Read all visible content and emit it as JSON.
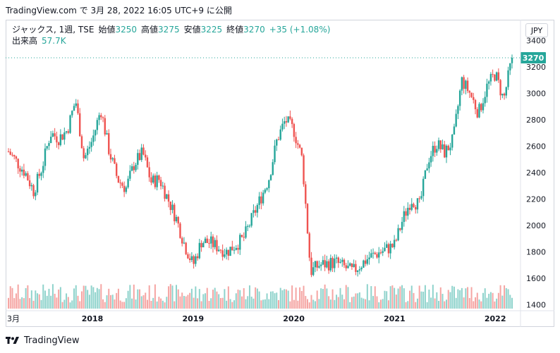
{
  "header": {
    "caption": "TradingView.com で 3月 28, 2022 16:05 UTC+9 に公開"
  },
  "legend": {
    "symbol": "ジャックス, 1週, TSE",
    "open_label": "始値",
    "open_value": "3250",
    "high_label": "高値",
    "high_value": "3275",
    "low_label": "安値",
    "low_value": "3225",
    "close_label": "終値",
    "close_value": "3270",
    "change": "+35 (+1.08%)",
    "volume_label": "出来高",
    "volume_value": "57.7K"
  },
  "currency_button": "JPY",
  "price_badge": "3270",
  "colors": {
    "up": "#26a69a",
    "down": "#ef5350",
    "up_vol": "#8fd3cc",
    "down_vol": "#f5a5a3"
  },
  "footer": {
    "brand": "TradingView",
    "logo_icon": "tradingview-logo-icon"
  },
  "chart_data": {
    "type": "candlestick",
    "interval": "1W",
    "y_ticks": [
      3400,
      3200,
      3000,
      2800,
      2600,
      2400,
      2200,
      2000,
      1800,
      1600,
      1400
    ],
    "y_range": [
      1370,
      3430
    ],
    "x_ticks": [
      "3月",
      "2018",
      "2019",
      "2020",
      "2021",
      "2022"
    ],
    "grid": false,
    "last_price": 3270,
    "anchors": [
      [
        "2017-03",
        2560
      ],
      [
        "2017-05",
        2400
      ],
      [
        "2017-06",
        2260
      ],
      [
        "2017-07",
        2440
      ],
      [
        "2017-08",
        2700
      ],
      [
        "2017-09",
        2660
      ],
      [
        "2017-10",
        2720
      ],
      [
        "2017-11",
        2950
      ],
      [
        "2017-12",
        2500
      ],
      [
        "2018-01",
        2650
      ],
      [
        "2018-02",
        2880
      ],
      [
        "2018-03",
        2560
      ],
      [
        "2018-04",
        2350
      ],
      [
        "2018-05",
        2280
      ],
      [
        "2018-06",
        2470
      ],
      [
        "2018-07",
        2550
      ],
      [
        "2018-08",
        2330
      ],
      [
        "2018-09",
        2350
      ],
      [
        "2018-10",
        2200
      ],
      [
        "2018-11",
        2050
      ],
      [
        "2018-12",
        1850
      ],
      [
        "2019-01",
        1700
      ],
      [
        "2019-02",
        1880
      ],
      [
        "2019-03",
        1870
      ],
      [
        "2019-05",
        1800
      ],
      [
        "2019-07",
        1900
      ],
      [
        "2019-08",
        2050
      ],
      [
        "2019-09",
        2200
      ],
      [
        "2019-10",
        2350
      ],
      [
        "2019-11",
        2650
      ],
      [
        "2019-12",
        2800
      ],
      [
        "2020-01",
        2720
      ],
      [
        "2020-02",
        2500
      ],
      [
        "2020-03",
        1650
      ],
      [
        "2020-04",
        1700
      ],
      [
        "2020-06",
        1720
      ],
      [
        "2020-08",
        1650
      ],
      [
        "2020-10",
        1760
      ],
      [
        "2020-12",
        1820
      ],
      [
        "2021-01",
        1850
      ],
      [
        "2021-02",
        2050
      ],
      [
        "2021-03",
        2200
      ],
      [
        "2021-04",
        2150
      ],
      [
        "2021-05",
        2500
      ],
      [
        "2021-06",
        2620
      ],
      [
        "2021-07",
        2550
      ],
      [
        "2021-08",
        2650
      ],
      [
        "2021-09",
        3100
      ],
      [
        "2021-10",
        3000
      ],
      [
        "2021-11",
        2850
      ],
      [
        "2021-12",
        3050
      ],
      [
        "2022-01",
        3150
      ],
      [
        "2022-02",
        2950
      ],
      [
        "2022-03",
        3270
      ]
    ]
  }
}
